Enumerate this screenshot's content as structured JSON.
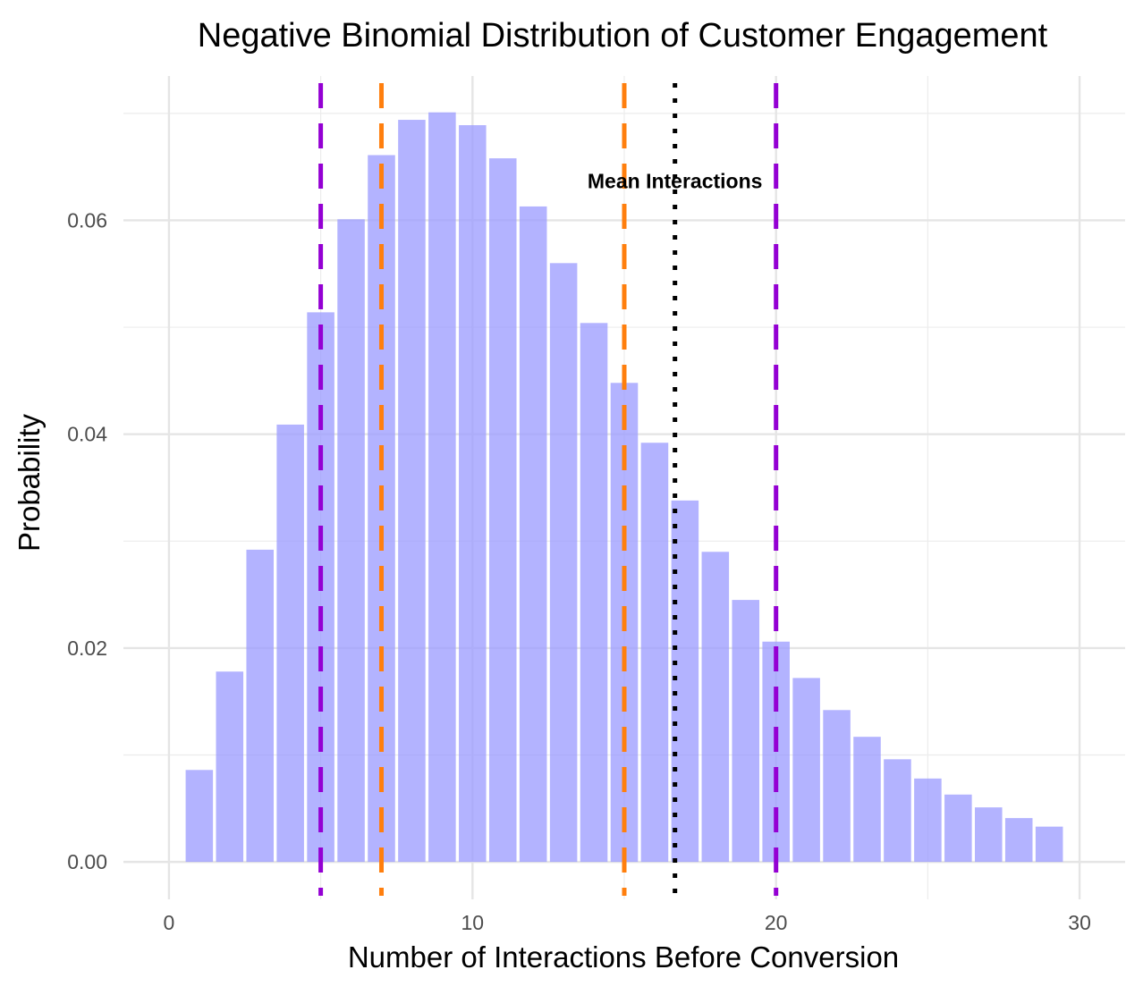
{
  "chart_data": {
    "type": "bar",
    "title": "Negative Binomial Distribution of Customer Engagement",
    "xlabel": "Number of Interactions Before Conversion",
    "ylabel": "Probability",
    "xlim": [
      -1.5,
      31.5
    ],
    "ylim": [
      -0.0035,
      0.0735
    ],
    "x_ticks": [
      0,
      10,
      20,
      30
    ],
    "x_tick_labels": [
      "0",
      "10",
      "20",
      "30"
    ],
    "y_ticks": [
      0,
      0.02,
      0.04,
      0.06
    ],
    "y_tick_labels": [
      "0.00",
      "0.02",
      "0.04",
      "0.06"
    ],
    "x_minor_ticks": [
      5,
      15,
      25
    ],
    "y_minor_ticks": [
      0.01,
      0.03,
      0.05,
      0.07
    ],
    "grid": true,
    "bar_color": "#9999ff",
    "bar_opacity": 0.75,
    "x": [
      1,
      2,
      3,
      4,
      5,
      6,
      7,
      8,
      9,
      10,
      11,
      12,
      13,
      14,
      15,
      16,
      17,
      18,
      19,
      20,
      21,
      22,
      23,
      24,
      25,
      26,
      27,
      28,
      29
    ],
    "values": [
      0.0086,
      0.0178,
      0.0292,
      0.0409,
      0.0514,
      0.0601,
      0.0661,
      0.0694,
      0.0701,
      0.0689,
      0.0658,
      0.0613,
      0.056,
      0.0504,
      0.0448,
      0.0392,
      0.0338,
      0.029,
      0.0245,
      0.0206,
      0.0172,
      0.0142,
      0.0117,
      0.0096,
      0.0078,
      0.0063,
      0.0051,
      0.0041,
      0.0033
    ],
    "reference_lines": [
      {
        "x": 5,
        "color": "#9400d3",
        "style": "dashed"
      },
      {
        "x": 20,
        "color": "#9400d3",
        "style": "dashed"
      },
      {
        "x": 7,
        "color": "#ff7f0e",
        "style": "dashed"
      },
      {
        "x": 15,
        "color": "#ff7f0e",
        "style": "dashed"
      },
      {
        "x": 16.67,
        "color": "#000000",
        "style": "dotted"
      }
    ],
    "annotations": [
      {
        "text": "Mean Interactions",
        "x": 16.67,
        "y": 0.063
      }
    ]
  }
}
